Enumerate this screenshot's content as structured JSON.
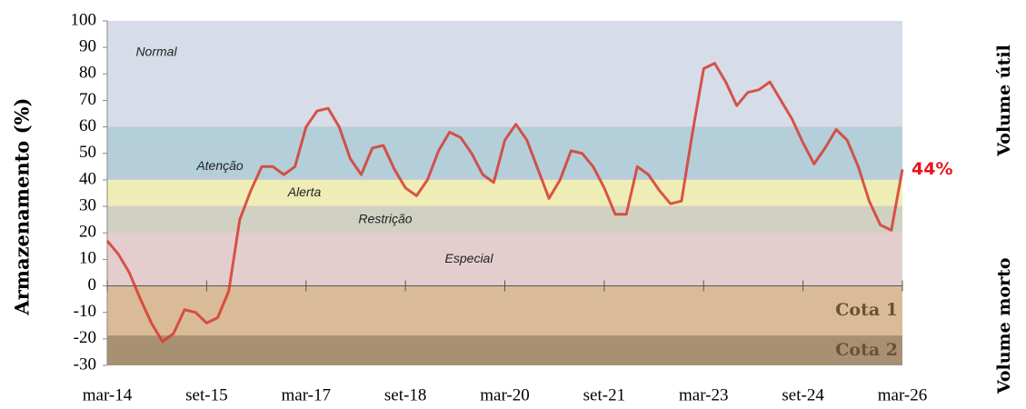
{
  "chart_data": {
    "type": "line",
    "y_label": "Armazenamento (%)",
    "right_labels": [
      "Volume útil",
      "Volume morto"
    ],
    "x": [
      "mar-14",
      null,
      null,
      null,
      null,
      null,
      null,
      null,
      null,
      "set-15",
      null,
      null,
      null,
      null,
      null,
      null,
      null,
      null,
      "mar-17",
      null,
      null,
      null,
      null,
      null,
      null,
      null,
      null,
      "set-18",
      null,
      null,
      null,
      null,
      null,
      null,
      null,
      null,
      "mar-20",
      null,
      null,
      null,
      null,
      null,
      null,
      null,
      null,
      "set-21",
      null,
      null,
      null,
      null,
      null,
      null,
      null,
      null,
      "mar-23",
      null,
      null,
      null,
      null,
      null,
      null,
      null,
      null,
      "set-24",
      null,
      null,
      null,
      null,
      null,
      null,
      null,
      null,
      "mar-26"
    ],
    "series": [
      {
        "color": "#d63a2f",
        "values": [
          17,
          12,
          5,
          -5,
          -14,
          -21,
          -18,
          -9,
          -10,
          -14,
          -12,
          -2,
          25,
          36,
          45,
          45,
          42,
          45,
          60,
          66,
          67,
          60,
          48,
          42,
          52,
          53,
          44,
          37,
          34,
          40,
          51,
          58,
          56,
          50,
          42,
          39,
          55,
          61,
          55,
          44,
          33,
          40,
          51,
          50,
          45,
          37,
          27,
          27,
          45,
          42,
          36,
          31,
          32,
          58,
          82,
          84,
          77,
          68,
          73,
          74,
          77,
          70,
          63,
          54,
          46,
          52,
          59,
          55,
          45,
          32,
          23,
          21,
          44
        ]
      }
    ],
    "annotation": {
      "text": "44%",
      "value": 44
    },
    "bands": [
      {
        "label": "Normal",
        "from": 60,
        "to": 100,
        "color": "#d6dde8"
      },
      {
        "label": "Atenção",
        "from": 40,
        "to": 60,
        "color": "#b4cfd9"
      },
      {
        "label": "Alerta",
        "from": 30,
        "to": 40,
        "color": "#efedb6"
      },
      {
        "label": "Restrição",
        "from": 20,
        "to": 30,
        "color": "#d0d1c3"
      },
      {
        "label": "Especial",
        "from": 0,
        "to": 20,
        "color": "#e4cdce"
      },
      {
        "label": "Cota 1",
        "from": -19,
        "to": 0,
        "color": "#d9bb97"
      },
      {
        "label": "Cota 2",
        "from": -30,
        "to": -19,
        "color": "#a89172"
      }
    ],
    "ylim": [
      -30,
      100
    ],
    "yticks": [
      -30,
      -20,
      -10,
      0,
      10,
      20,
      30,
      40,
      50,
      60,
      70,
      80,
      90,
      100
    ]
  }
}
